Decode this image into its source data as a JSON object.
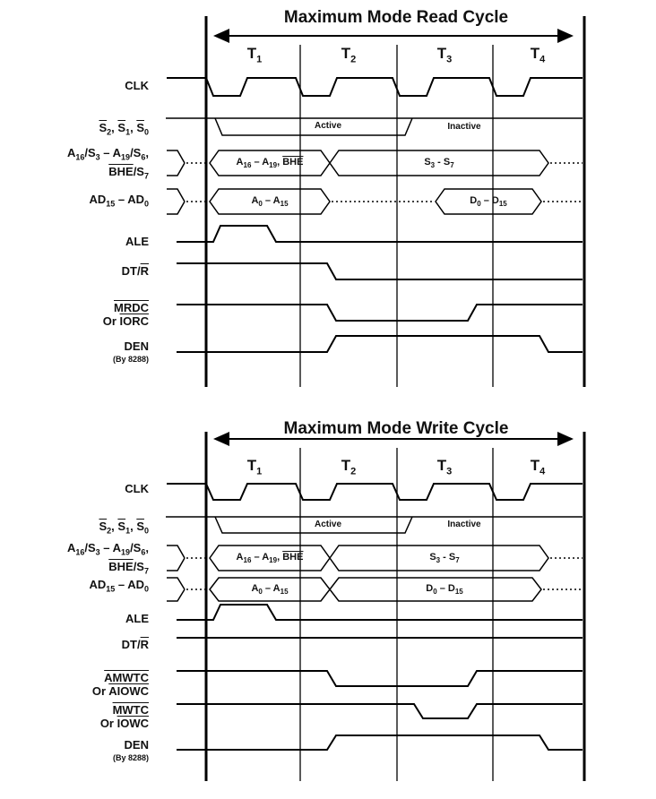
{
  "read": {
    "title": "Maximum Mode Read Cycle",
    "states": [
      "T1",
      "T2",
      "T3",
      "T4"
    ],
    "signals": {
      "clk": "CLK",
      "status": "S2, S1, S0",
      "addr_hi": "A16/S3 – A19/S6,",
      "addr_hi2": "BHE/S7",
      "ad": "AD15 – AD0",
      "ale": "ALE",
      "dtr": "DT/R",
      "cmd1": "MRDC",
      "cmd2": "Or IORC",
      "den": "DEN",
      "den_note": "(By 8288)"
    },
    "segments": {
      "active": "Active",
      "inactive": "Inactive",
      "addr_hi": "A16 – A19, BHE",
      "status_bits": "S3 - S7",
      "addr_lo": "A0 – A15",
      "data": "D0 – D15"
    }
  },
  "write": {
    "title": "Maximum Mode Write Cycle",
    "states": [
      "T1",
      "T2",
      "T3",
      "T4"
    ],
    "signals": {
      "clk": "CLK",
      "status": "S2, S1, S0",
      "addr_hi": "A16/S3 – A19/S6,",
      "addr_hi2": "BHE/S7",
      "ad": "AD15 – AD0",
      "ale": "ALE",
      "dtr": "DT/R",
      "cmd1a": "AMWTC",
      "cmd1b": "Or AIOWC",
      "cmd2a": "MWTC",
      "cmd2b": "Or IOWC",
      "den": "DEN",
      "den_note": "(By 8288)"
    },
    "segments": {
      "active": "Active",
      "inactive": "Inactive",
      "addr_hi": "A16 – A19, BHE",
      "status_bits": "S3 - S7",
      "addr_lo": "A0 – A15",
      "data": "D0 – D15"
    }
  }
}
